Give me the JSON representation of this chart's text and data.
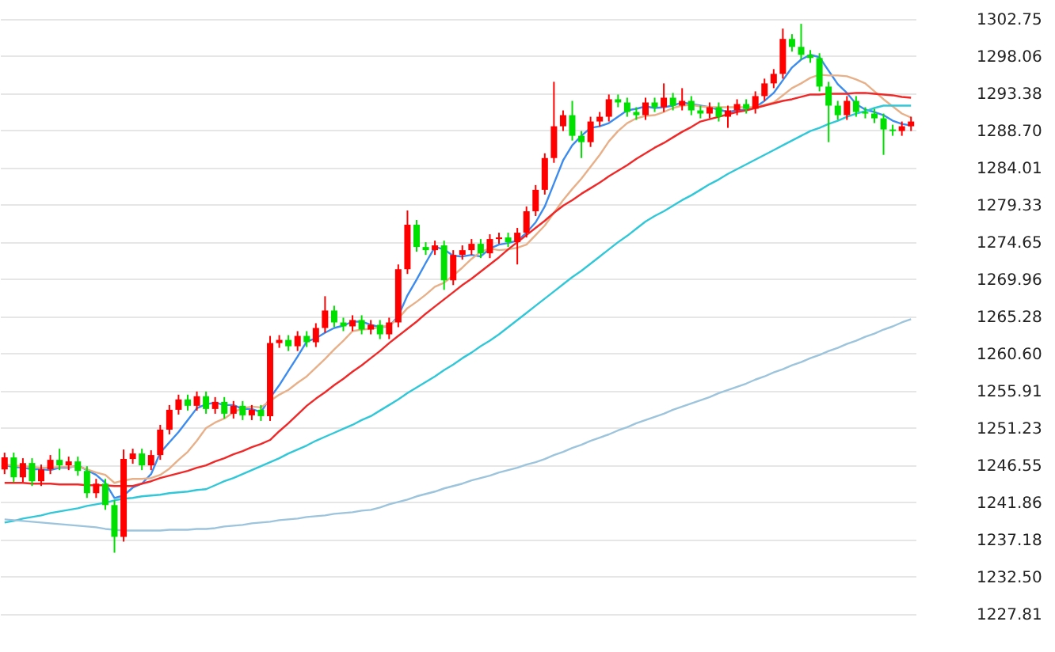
{
  "chart_data": {
    "type": "candlestick",
    "categories": [
      null,
      null,
      null,
      null,
      null,
      null,
      null,
      null,
      null,
      null,
      null,
      null,
      null,
      null,
      null,
      null,
      null,
      null,
      null,
      null,
      null,
      null,
      null,
      null,
      null,
      null,
      null,
      null,
      null,
      null,
      null,
      null,
      null,
      null,
      null,
      null,
      null,
      null,
      null,
      null,
      null,
      null,
      null,
      null,
      null,
      null,
      null,
      null,
      null,
      null,
      null,
      null,
      null,
      null,
      null,
      null,
      null,
      null,
      null,
      null,
      null,
      null,
      null,
      null,
      null,
      null,
      null,
      null,
      null,
      null,
      null,
      null,
      null,
      null,
      null,
      null,
      null,
      null,
      null,
      null,
      null,
      null,
      null,
      null,
      null,
      null,
      null,
      null,
      null,
      null,
      null,
      null,
      null,
      null,
      null,
      null,
      null,
      null,
      null,
      null
    ],
    "ohlc": [
      [
        1246.0,
        1248.1,
        1245.4,
        1247.5
      ],
      [
        1247.5,
        1248.1,
        1244.4,
        1245.0
      ],
      [
        1245.0,
        1247.4,
        1244.4,
        1246.8
      ],
      [
        1246.8,
        1247.4,
        1243.9,
        1244.5
      ],
      [
        1244.5,
        1246.6,
        1243.9,
        1246.0
      ],
      [
        1246.0,
        1247.8,
        1245.4,
        1247.2
      ],
      [
        1247.2,
        1248.6,
        1245.9,
        1246.5
      ],
      [
        1246.5,
        1247.6,
        1245.9,
        1247.0
      ],
      [
        1247.0,
        1247.6,
        1245.2,
        1245.8
      ],
      [
        1245.8,
        1246.4,
        1242.4,
        1243.0
      ],
      [
        1243.0,
        1244.8,
        1242.4,
        1244.2
      ],
      [
        1244.2,
        1244.8,
        1240.9,
        1241.5
      ],
      [
        1241.5,
        1242.1,
        1235.5,
        1237.5
      ],
      [
        1237.5,
        1248.5,
        1236.9,
        1247.3
      ],
      [
        1247.3,
        1248.6,
        1246.7,
        1248.0
      ],
      [
        1248.0,
        1248.6,
        1245.9,
        1246.5
      ],
      [
        1246.5,
        1248.4,
        1245.9,
        1247.8
      ],
      [
        1247.8,
        1251.6,
        1247.2,
        1251.0
      ],
      [
        1251.0,
        1254.1,
        1250.4,
        1253.5
      ],
      [
        1253.5,
        1255.4,
        1252.9,
        1254.8
      ],
      [
        1254.8,
        1255.4,
        1253.4,
        1254.0
      ],
      [
        1254.0,
        1255.8,
        1253.4,
        1255.2
      ],
      [
        1255.2,
        1255.8,
        1253.0,
        1253.6
      ],
      [
        1253.6,
        1255.1,
        1253.0,
        1254.5
      ],
      [
        1254.5,
        1255.1,
        1252.4,
        1253.0
      ],
      [
        1253.0,
        1254.6,
        1252.4,
        1254.0
      ],
      [
        1254.0,
        1254.6,
        1252.2,
        1252.8
      ],
      [
        1252.8,
        1254.1,
        1252.2,
        1253.5
      ],
      [
        1253.5,
        1254.1,
        1252.1,
        1252.7
      ],
      [
        1252.7,
        1262.8,
        1252.1,
        1261.9
      ],
      [
        1261.9,
        1262.9,
        1261.3,
        1262.3
      ],
      [
        1262.3,
        1262.9,
        1260.9,
        1261.5
      ],
      [
        1261.5,
        1263.4,
        1260.9,
        1262.8
      ],
      [
        1262.8,
        1263.4,
        1261.4,
        1262.0
      ],
      [
        1262.0,
        1264.4,
        1261.4,
        1263.8
      ],
      [
        1263.8,
        1267.8,
        1263.2,
        1266.0
      ],
      [
        1266.0,
        1266.6,
        1263.9,
        1264.5
      ],
      [
        1264.5,
        1265.1,
        1263.4,
        1264.0
      ],
      [
        1264.0,
        1265.4,
        1263.4,
        1264.8
      ],
      [
        1264.8,
        1265.4,
        1263.0,
        1263.6
      ],
      [
        1263.6,
        1264.8,
        1263.0,
        1264.2
      ],
      [
        1264.2,
        1264.8,
        1262.4,
        1263.0
      ],
      [
        1263.0,
        1265.1,
        1262.4,
        1264.5
      ],
      [
        1264.5,
        1271.8,
        1263.9,
        1271.2
      ],
      [
        1271.2,
        1278.6,
        1270.6,
        1276.8
      ],
      [
        1276.8,
        1277.4,
        1273.4,
        1274.0
      ],
      [
        1274.0,
        1274.6,
        1273.0,
        1273.6
      ],
      [
        1273.6,
        1274.8,
        1273.0,
        1274.2
      ],
      [
        1274.2,
        1274.8,
        1268.6,
        1269.8
      ],
      [
        1269.8,
        1273.6,
        1269.2,
        1273.0
      ],
      [
        1273.0,
        1274.2,
        1272.4,
        1273.6
      ],
      [
        1273.6,
        1275.0,
        1273.0,
        1274.4
      ],
      [
        1274.4,
        1275.0,
        1272.6,
        1273.2
      ],
      [
        1273.2,
        1275.6,
        1272.6,
        1275.0
      ],
      [
        1275.0,
        1275.8,
        1274.4,
        1275.2
      ],
      [
        1275.2,
        1275.8,
        1274.0,
        1274.6
      ],
      [
        1274.6,
        1276.4,
        1271.8,
        1275.8
      ],
      [
        1275.8,
        1279.1,
        1275.2,
        1278.5
      ],
      [
        1278.5,
        1281.8,
        1277.9,
        1281.2
      ],
      [
        1281.2,
        1285.8,
        1280.6,
        1285.2
      ],
      [
        1285.2,
        1294.8,
        1284.6,
        1289.2
      ],
      [
        1289.2,
        1291.2,
        1288.6,
        1290.6
      ],
      [
        1290.6,
        1292.4,
        1287.4,
        1288.0
      ],
      [
        1288.0,
        1288.6,
        1285.2,
        1287.2
      ],
      [
        1287.2,
        1290.4,
        1286.6,
        1289.8
      ],
      [
        1289.8,
        1291.0,
        1289.2,
        1290.4
      ],
      [
        1290.4,
        1293.2,
        1289.8,
        1292.6
      ],
      [
        1292.6,
        1293.2,
        1291.6,
        1292.2
      ],
      [
        1292.2,
        1292.8,
        1290.4,
        1291.0
      ],
      [
        1291.0,
        1291.6,
        1290.0,
        1290.6
      ],
      [
        1290.6,
        1292.8,
        1290.0,
        1292.2
      ],
      [
        1292.2,
        1292.8,
        1291.0,
        1291.6
      ],
      [
        1291.6,
        1294.6,
        1291.0,
        1292.8
      ],
      [
        1292.8,
        1293.4,
        1291.2,
        1291.8
      ],
      [
        1291.8,
        1294.0,
        1291.2,
        1292.4
      ],
      [
        1292.4,
        1293.0,
        1290.6,
        1291.2
      ],
      [
        1291.2,
        1291.8,
        1290.2,
        1290.8
      ],
      [
        1290.8,
        1292.2,
        1290.2,
        1291.6
      ],
      [
        1291.6,
        1292.2,
        1289.8,
        1290.4
      ],
      [
        1290.4,
        1291.8,
        1289.0,
        1291.2
      ],
      [
        1291.2,
        1292.6,
        1290.6,
        1292.0
      ],
      [
        1292.0,
        1292.6,
        1290.8,
        1291.4
      ],
      [
        1291.4,
        1293.6,
        1290.8,
        1293.0
      ],
      [
        1293.0,
        1295.2,
        1292.4,
        1294.6
      ],
      [
        1294.6,
        1296.4,
        1294.0,
        1295.8
      ],
      [
        1295.8,
        1301.5,
        1295.2,
        1300.2
      ],
      [
        1300.2,
        1300.8,
        1298.6,
        1299.2
      ],
      [
        1299.2,
        1302.1,
        1297.6,
        1298.2
      ],
      [
        1298.2,
        1298.8,
        1297.2,
        1297.8
      ],
      [
        1297.8,
        1298.4,
        1293.6,
        1294.2
      ],
      [
        1294.2,
        1294.8,
        1287.2,
        1291.8
      ],
      [
        1291.8,
        1292.4,
        1290.0,
        1290.6
      ],
      [
        1290.6,
        1293.0,
        1290.0,
        1292.4
      ],
      [
        1292.4,
        1293.0,
        1290.4,
        1291.0
      ],
      [
        1291.0,
        1291.6,
        1290.2,
        1290.8
      ],
      [
        1290.8,
        1291.4,
        1289.6,
        1290.2
      ],
      [
        1290.2,
        1290.8,
        1285.6,
        1288.8
      ],
      [
        1288.8,
        1289.4,
        1288.0,
        1288.6
      ],
      [
        1288.6,
        1289.8,
        1288.0,
        1289.2
      ],
      [
        1289.2,
        1290.4,
        1288.6,
        1289.8
      ]
    ],
    "colors": [
      "#ff0000",
      "#00e000",
      "#ff0000",
      "#00e000",
      "#ff0000",
      "#ff0000",
      "#00e000",
      "#ff0000",
      "#00e000",
      "#00e000",
      "#ff0000",
      "#00e000",
      "#00e000",
      "#ff0000",
      "#ff0000",
      "#00e000",
      "#ff0000",
      "#ff0000",
      "#ff0000",
      "#ff0000",
      "#00e000",
      "#ff0000",
      "#00e000",
      "#ff0000",
      "#00e000",
      "#ff0000",
      "#00e000",
      "#ff0000",
      "#00e000",
      "#ff0000",
      "#ff0000",
      "#00e000",
      "#ff0000",
      "#00e000",
      "#ff0000",
      "#ff0000",
      "#00e000",
      "#00e000",
      "#ff0000",
      "#00e000",
      "#ff0000",
      "#00e000",
      "#ff0000",
      "#ff0000",
      "#ff0000",
      "#00e000",
      "#00e000",
      "#ff0000",
      "#00e000",
      "#ff0000",
      "#ff0000",
      "#ff0000",
      "#00e000",
      "#ff0000",
      "#ff0000",
      "#00e000",
      "#ff0000",
      "#ff0000",
      "#ff0000",
      "#ff0000",
      "#ff0000",
      "#ff0000",
      "#00e000",
      "#00e000",
      "#ff0000",
      "#ff0000",
      "#ff0000",
      "#00e000",
      "#00e000",
      "#00e000",
      "#ff0000",
      "#00e000",
      "#ff0000",
      "#00e000",
      "#ff0000",
      "#00e000",
      "#00e000",
      "#ff0000",
      "#00e000",
      "#ff0000",
      "#ff0000",
      "#00e000",
      "#ff0000",
      "#ff0000",
      "#ff0000",
      "#ff0000",
      "#00e000",
      "#00e000",
      "#00e000",
      "#00e000",
      "#00e000",
      "#00e000",
      "#ff0000",
      "#00e000",
      "#00e000",
      "#00e000",
      "#00e000",
      "#00e000",
      "#ff0000",
      "#ff0000"
    ],
    "series": [
      {
        "type": "line",
        "color": "#3c8cf0",
        "values": [
          1246.5,
          1246.3,
          1246.2,
          1246.0,
          1246.0,
          1245.9,
          1246.2,
          1246.2,
          1246.5,
          1245.9,
          1245.3,
          1244.3,
          1242.4,
          1242.7,
          1243.7,
          1244.2,
          1245.4,
          1248.1,
          1249.4,
          1250.7,
          1252.2,
          1253.7,
          1254.2,
          1254.4,
          1254.1,
          1254.1,
          1253.6,
          1253.6,
          1253.2,
          1255.0,
          1256.6,
          1258.4,
          1260.2,
          1262.1,
          1262.5,
          1263.2,
          1263.8,
          1264.1,
          1264.6,
          1264.6,
          1264.2,
          1263.9,
          1264.0,
          1265.3,
          1267.9,
          1269.9,
          1272.0,
          1274.0,
          1273.7,
          1272.9,
          1272.8,
          1273.0,
          1272.8,
          1273.8,
          1274.3,
          1274.5,
          1274.8,
          1275.8,
          1277.1,
          1279.1,
          1282.0,
          1284.9,
          1286.8,
          1288.0,
          1289.0,
          1289.2,
          1289.6,
          1290.4,
          1291.2,
          1291.4,
          1291.7,
          1291.5,
          1291.6,
          1291.8,
          1292.2,
          1292.0,
          1291.8,
          1291.6,
          1291.3,
          1291.0,
          1291.2,
          1291.3,
          1291.6,
          1292.4,
          1293.4,
          1295.0,
          1296.6,
          1297.6,
          1298.2,
          1297.9,
          1296.2,
          1294.5,
          1293.4,
          1292.0,
          1291.3,
          1291.0,
          1290.6,
          1289.9,
          1289.5,
          1289.3
        ]
      },
      {
        "type": "line",
        "color": "#e8b088",
        "values": [
          1246.6,
          1246.5,
          1246.4,
          1246.3,
          1246.2,
          1246.2,
          1246.3,
          1246.3,
          1246.4,
          1246.0,
          1245.6,
          1245.3,
          1244.3,
          1244.6,
          1244.8,
          1244.8,
          1244.9,
          1245.3,
          1246.1,
          1247.2,
          1248.2,
          1249.6,
          1251.2,
          1251.9,
          1252.4,
          1253.2,
          1253.7,
          1253.9,
          1253.8,
          1254.6,
          1255.4,
          1256.0,
          1256.9,
          1257.7,
          1258.8,
          1259.9,
          1261.1,
          1262.2,
          1263.4,
          1263.6,
          1263.7,
          1263.9,
          1264.1,
          1265.0,
          1266.3,
          1267.1,
          1268.0,
          1269.0,
          1269.5,
          1270.4,
          1271.4,
          1272.5,
          1273.4,
          1273.8,
          1273.6,
          1273.7,
          1273.9,
          1274.3,
          1275.5,
          1276.7,
          1278.3,
          1279.9,
          1281.3,
          1282.6,
          1284.1,
          1285.6,
          1287.3,
          1288.6,
          1289.6,
          1290.2,
          1290.5,
          1290.6,
          1291.0,
          1291.5,
          1291.8,
          1291.9,
          1291.7,
          1291.6,
          1291.6,
          1291.6,
          1291.6,
          1291.6,
          1291.6,
          1291.9,
          1292.2,
          1293.1,
          1294.0,
          1294.6,
          1295.3,
          1295.7,
          1295.6,
          1295.6,
          1295.5,
          1295.1,
          1294.6,
          1293.6,
          1292.6,
          1291.7,
          1290.8,
          1290.3
        ]
      },
      {
        "type": "line",
        "color": "#f02828",
        "values": [
          1244.3,
          1244.3,
          1244.3,
          1244.2,
          1244.2,
          1244.2,
          1244.1,
          1244.1,
          1244.1,
          1244.0,
          1244.0,
          1244.0,
          1243.9,
          1243.9,
          1243.9,
          1244.2,
          1244.5,
          1244.9,
          1245.2,
          1245.5,
          1245.8,
          1246.2,
          1246.5,
          1247.0,
          1247.4,
          1247.9,
          1248.3,
          1248.8,
          1249.2,
          1249.7,
          1250.8,
          1251.8,
          1252.9,
          1254.0,
          1254.9,
          1255.7,
          1256.6,
          1257.4,
          1258.3,
          1259.1,
          1260.0,
          1260.9,
          1261.9,
          1262.8,
          1263.7,
          1264.6,
          1265.6,
          1266.5,
          1267.4,
          1268.3,
          1269.2,
          1270.0,
          1270.9,
          1271.8,
          1272.7,
          1273.7,
          1274.6,
          1275.5,
          1276.4,
          1277.3,
          1278.3,
          1279.2,
          1279.9,
          1280.7,
          1281.4,
          1282.1,
          1282.9,
          1283.6,
          1284.3,
          1285.1,
          1285.8,
          1286.5,
          1287.1,
          1287.8,
          1288.5,
          1289.1,
          1289.8,
          1290.1,
          1290.4,
          1290.7,
          1291.0,
          1291.2,
          1291.5,
          1291.8,
          1292.1,
          1292.4,
          1292.6,
          1292.9,
          1293.2,
          1293.2,
          1293.3,
          1293.3,
          1293.3,
          1293.4,
          1293.4,
          1293.3,
          1293.2,
          1293.1,
          1292.9,
          1292.8
        ]
      },
      {
        "type": "line",
        "color": "#30c8d8",
        "values": [
          1239.3,
          1239.5,
          1239.8,
          1240.0,
          1240.2,
          1240.5,
          1240.7,
          1240.9,
          1241.1,
          1241.4,
          1241.6,
          1241.8,
          1242.1,
          1242.3,
          1242.4,
          1242.6,
          1242.7,
          1242.8,
          1243.0,
          1243.1,
          1243.2,
          1243.4,
          1243.5,
          1244.0,
          1244.5,
          1244.9,
          1245.4,
          1245.9,
          1246.4,
          1246.9,
          1247.4,
          1248.0,
          1248.5,
          1249.0,
          1249.6,
          1250.1,
          1250.6,
          1251.1,
          1251.6,
          1252.2,
          1252.7,
          1253.4,
          1254.1,
          1254.8,
          1255.6,
          1256.3,
          1257.0,
          1257.7,
          1258.5,
          1259.2,
          1260.0,
          1260.7,
          1261.5,
          1262.2,
          1263.0,
          1263.9,
          1264.8,
          1265.7,
          1266.6,
          1267.5,
          1268.4,
          1269.3,
          1270.2,
          1271.0,
          1271.9,
          1272.8,
          1273.7,
          1274.6,
          1275.4,
          1276.3,
          1277.2,
          1277.9,
          1278.5,
          1279.2,
          1279.9,
          1280.5,
          1281.2,
          1281.9,
          1282.5,
          1283.2,
          1283.8,
          1284.4,
          1285.0,
          1285.6,
          1286.2,
          1286.8,
          1287.4,
          1288.0,
          1288.6,
          1289.0,
          1289.5,
          1289.9,
          1290.4,
          1290.8,
          1291.1,
          1291.5,
          1291.8,
          1291.8,
          1291.8,
          1291.8
        ]
      },
      {
        "type": "line",
        "color": "#9cc4dc",
        "values": [
          1239.7,
          1239.6,
          1239.5,
          1239.4,
          1239.3,
          1239.2,
          1239.1,
          1239.0,
          1238.9,
          1238.8,
          1238.7,
          1238.5,
          1238.4,
          1238.3,
          1238.3,
          1238.3,
          1238.3,
          1238.3,
          1238.4,
          1238.4,
          1238.4,
          1238.5,
          1238.5,
          1238.6,
          1238.8,
          1238.9,
          1239.0,
          1239.2,
          1239.3,
          1239.4,
          1239.6,
          1239.7,
          1239.8,
          1240.0,
          1240.1,
          1240.2,
          1240.4,
          1240.5,
          1240.6,
          1240.8,
          1240.9,
          1241.2,
          1241.6,
          1241.9,
          1242.2,
          1242.6,
          1242.9,
          1243.2,
          1243.6,
          1243.9,
          1244.2,
          1244.6,
          1244.9,
          1245.2,
          1245.6,
          1245.9,
          1246.2,
          1246.6,
          1246.9,
          1247.3,
          1247.8,
          1248.2,
          1248.7,
          1249.1,
          1249.6,
          1250.0,
          1250.4,
          1250.9,
          1251.3,
          1251.8,
          1252.2,
          1252.6,
          1253.0,
          1253.5,
          1253.9,
          1254.3,
          1254.7,
          1255.1,
          1255.6,
          1256.0,
          1256.4,
          1256.8,
          1257.3,
          1257.7,
          1258.2,
          1258.6,
          1259.1,
          1259.5,
          1260.0,
          1260.4,
          1260.9,
          1261.3,
          1261.8,
          1262.2,
          1262.7,
          1263.1,
          1263.6,
          1264.0,
          1264.5,
          1264.9
        ]
      }
    ],
    "ylim": [
      1223.0,
      1305.1
    ],
    "yticks": [
      1302.75,
      1298.06,
      1293.38,
      {
        "value": 1288.7,
        "label": "1288.70"
      },
      1284.01,
      1279.33,
      1274.65,
      1269.96,
      1265.28,
      {
        "value": 1260.6,
        "label": "1260.60"
      },
      1255.91,
      1251.23,
      1246.55,
      1241.86,
      1237.18,
      {
        "value": 1232.5,
        "label": "1232.50"
      },
      1227.81
    ],
    "grid": "y",
    "tick_labels": "y"
  }
}
